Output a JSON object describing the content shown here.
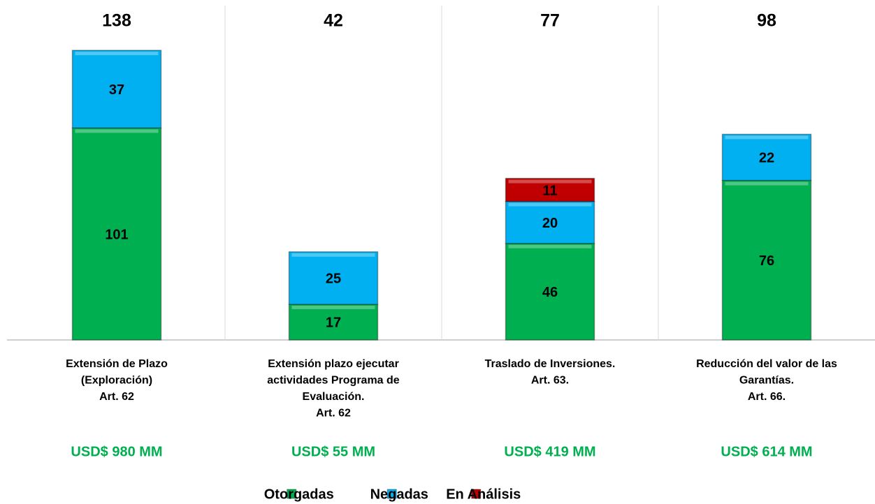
{
  "chart_data": {
    "type": "stacked_bar",
    "categories": [
      [
        "Extensión de Plazo",
        "(Exploración)",
        "Art. 62"
      ],
      [
        "Extensión plazo ejecutar",
        "actividades Programa de",
        "Evaluación.",
        "Art. 62"
      ],
      [
        "Traslado de Inversiones.",
        "Art. 63."
      ],
      [
        "Reducción del valor de las",
        "Garantías.",
        "Art. 66."
      ]
    ],
    "series": [
      {
        "name": "Otorgadas",
        "color": "#00b050",
        "values": [
          101,
          17,
          46,
          76
        ]
      },
      {
        "name": "Negadas",
        "color": "#00b0f0",
        "values": [
          37,
          25,
          20,
          22
        ]
      },
      {
        "name": "En Análisis",
        "color": "#c00000",
        "values": [
          null,
          null,
          11,
          null
        ]
      }
    ],
    "totals": [
      138,
      42,
      77,
      98
    ],
    "amounts": [
      "USD$ 980 MM",
      "USD$ 55 MM",
      "USD$ 419 MM",
      "USD$ 614 MM"
    ],
    "ylim": [
      0,
      150
    ],
    "legend": "bottom"
  }
}
